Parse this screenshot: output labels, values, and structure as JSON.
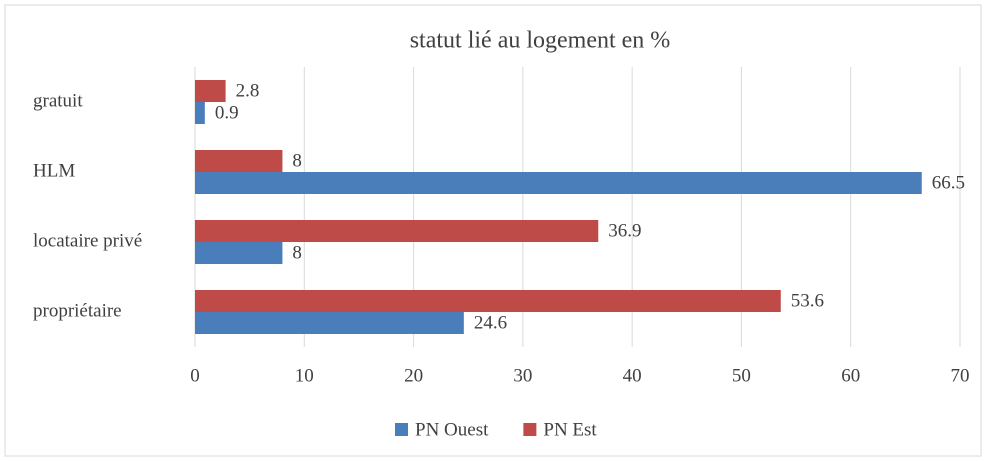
{
  "chart_data": {
    "type": "hbar",
    "title": "statut lié au logement en %",
    "categories": [
      "gratuit",
      "HLM",
      "locataire privé",
      "propriétaire"
    ],
    "series": [
      {
        "name": "PN Ouest",
        "color": "#4a7ebb",
        "values": [
          0.9,
          66.5,
          8,
          24.6
        ]
      },
      {
        "name": "PN Est",
        "color": "#be4b48",
        "values": [
          2.8,
          8,
          36.9,
          53.6
        ]
      }
    ],
    "xlim": [
      0,
      70
    ],
    "xticks": [
      0,
      10,
      20,
      30,
      40,
      50,
      60,
      70
    ],
    "grid": true,
    "legend": "bottom"
  }
}
